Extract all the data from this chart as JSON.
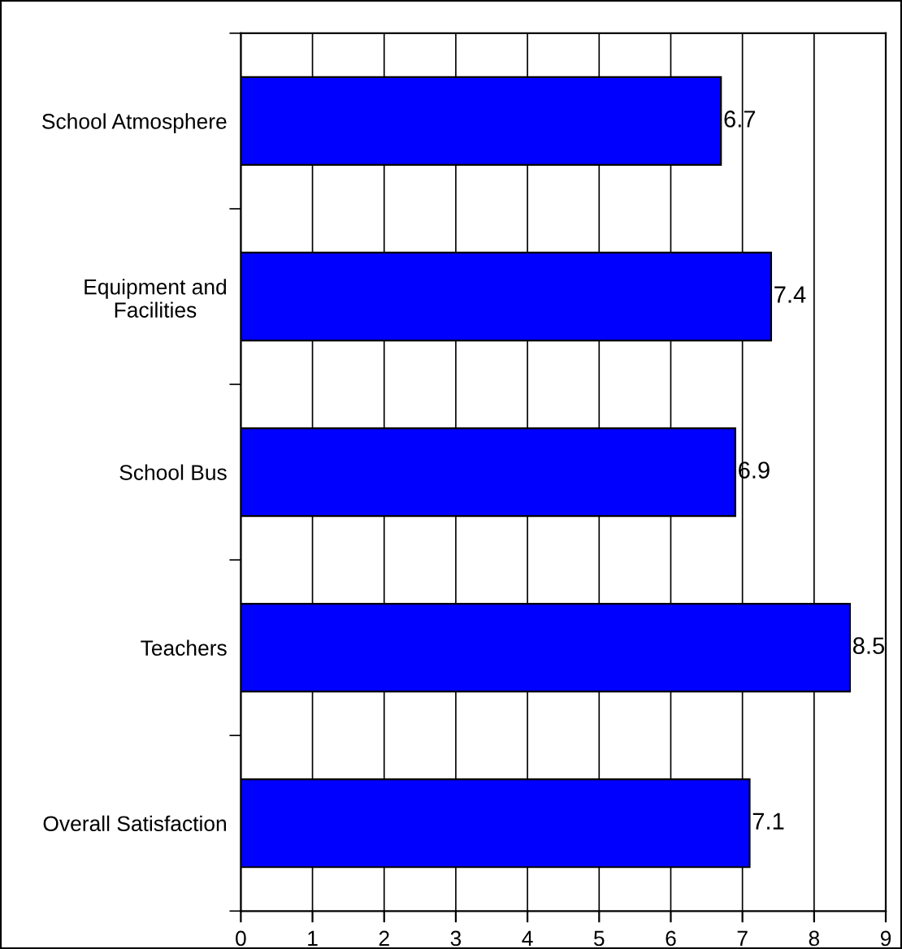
{
  "chart_data": {
    "type": "bar",
    "orientation": "horizontal",
    "categories": [
      "School Atmosphere",
      "Equipment and\nFacilities",
      "School Bus",
      "Teachers",
      "Overall Satisfaction"
    ],
    "values": [
      6.7,
      7.4,
      6.9,
      8.5,
      7.1
    ],
    "color": "#0000ff",
    "xlim": [
      0,
      9
    ],
    "xticks": [
      0,
      1,
      2,
      3,
      4,
      5,
      6,
      7,
      8,
      9
    ],
    "grid": "x",
    "data_labels": true
  }
}
